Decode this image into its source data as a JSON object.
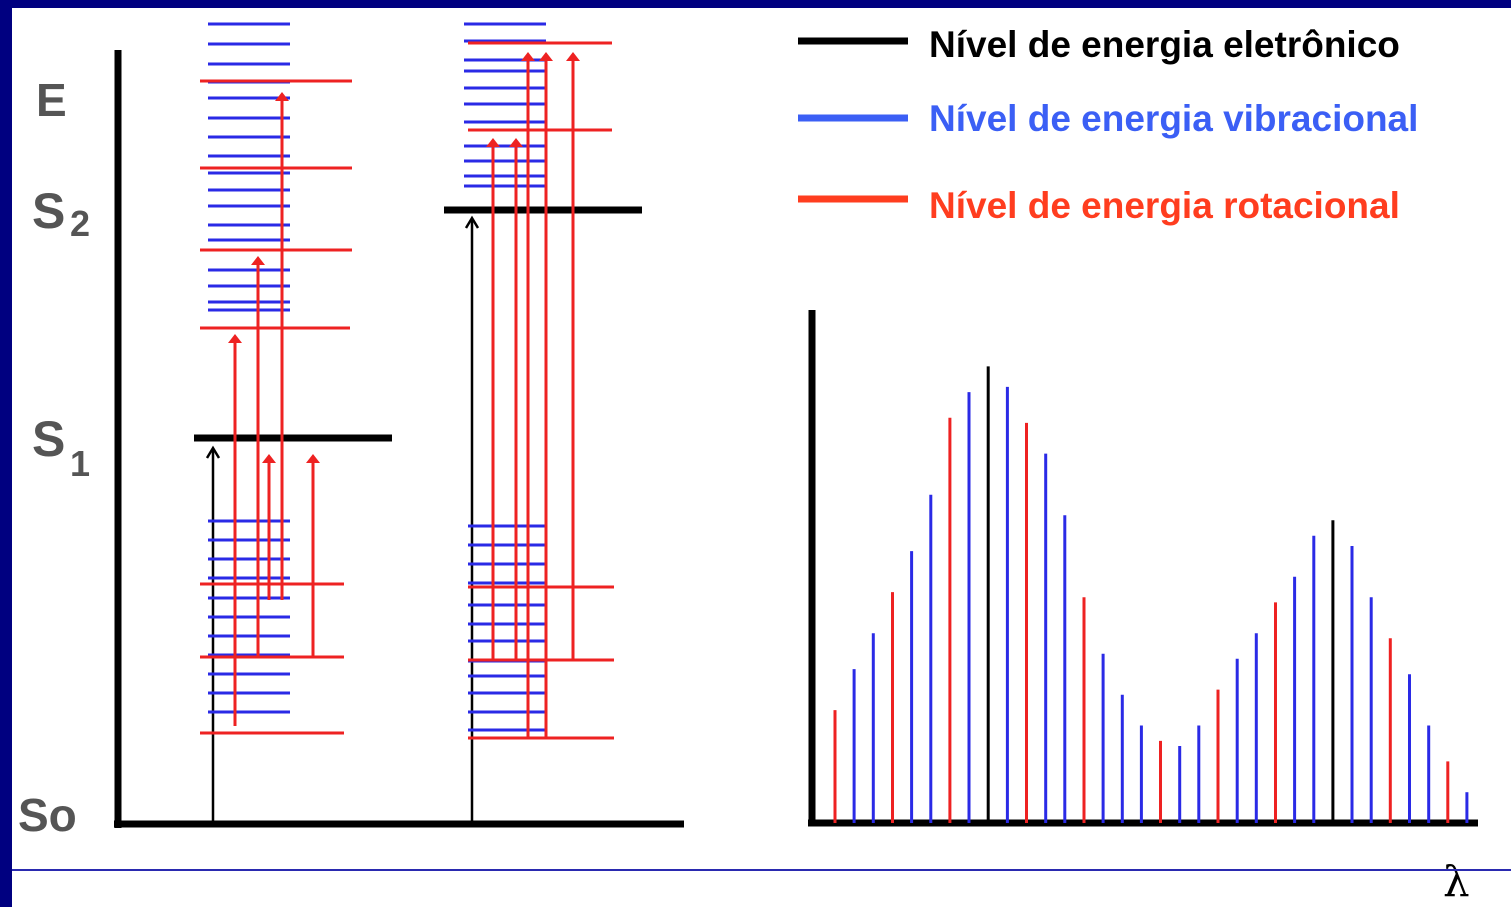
{
  "labels": {
    "energy": "E",
    "s2_base": "S",
    "s2_sub": "2",
    "s1_base": "S",
    "s1_sub": "1",
    "s0": "So",
    "wavelength": "λ"
  },
  "legend": [
    {
      "text": "Nível de energia eletrônico",
      "color": "#000000"
    },
    {
      "text": "Nível de energia vibracional",
      "color": "#3b5ff5"
    },
    {
      "text": "Nível de energia rotacional",
      "color": "#ff3d1f"
    }
  ],
  "colors": {
    "electronic": "#000000",
    "vibrational": "#2a2ae6",
    "rotational": "#ee2222",
    "slide_background": "#000080",
    "footer_rule": "#2a2ab0"
  },
  "chart_data": {
    "type": "bar",
    "title": "",
    "xlabel": "λ",
    "ylabel": "",
    "ylim": [
      0,
      100
    ],
    "grid": false,
    "bars": [
      {
        "v": 22,
        "c": "rotational"
      },
      {
        "v": 30,
        "c": "vibrational"
      },
      {
        "v": 37,
        "c": "vibrational"
      },
      {
        "v": 45,
        "c": "rotational"
      },
      {
        "v": 53,
        "c": "vibrational"
      },
      {
        "v": 64,
        "c": "vibrational"
      },
      {
        "v": 79,
        "c": "rotational"
      },
      {
        "v": 84,
        "c": "vibrational"
      },
      {
        "v": 89,
        "c": "electronic"
      },
      {
        "v": 85,
        "c": "vibrational"
      },
      {
        "v": 78,
        "c": "rotational"
      },
      {
        "v": 72,
        "c": "vibrational"
      },
      {
        "v": 60,
        "c": "vibrational"
      },
      {
        "v": 44,
        "c": "rotational"
      },
      {
        "v": 33,
        "c": "vibrational"
      },
      {
        "v": 25,
        "c": "vibrational"
      },
      {
        "v": 19,
        "c": "vibrational"
      },
      {
        "v": 16,
        "c": "rotational"
      },
      {
        "v": 15,
        "c": "vibrational"
      },
      {
        "v": 19,
        "c": "vibrational"
      },
      {
        "v": 26,
        "c": "rotational"
      },
      {
        "v": 32,
        "c": "vibrational"
      },
      {
        "v": 37,
        "c": "vibrational"
      },
      {
        "v": 43,
        "c": "rotational"
      },
      {
        "v": 48,
        "c": "vibrational"
      },
      {
        "v": 56,
        "c": "vibrational"
      },
      {
        "v": 59,
        "c": "electronic"
      },
      {
        "v": 54,
        "c": "vibrational"
      },
      {
        "v": 44,
        "c": "vibrational"
      },
      {
        "v": 36,
        "c": "rotational"
      },
      {
        "v": 29,
        "c": "vibrational"
      },
      {
        "v": 19,
        "c": "vibrational"
      },
      {
        "v": 12,
        "c": "rotational"
      },
      {
        "v": 6,
        "c": "vibrational"
      }
    ]
  }
}
